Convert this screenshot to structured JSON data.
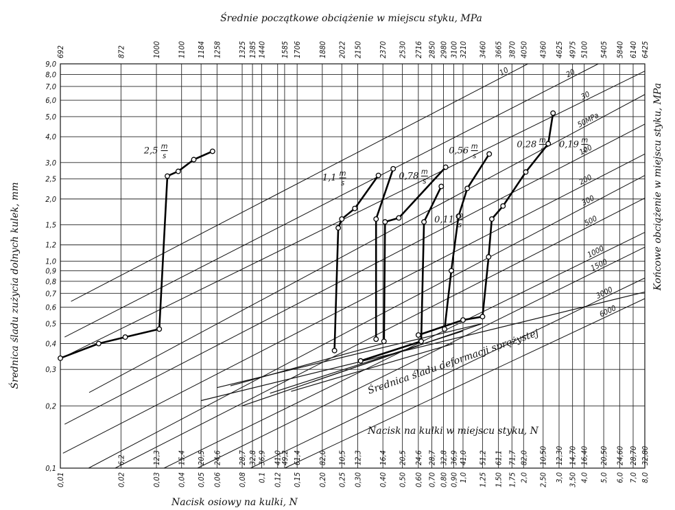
{
  "chart_data": {
    "type": "line",
    "title_top": "Średnie początkowe obciążenie w miejscu styku, MPa",
    "xlabel": "Nacisk osiowy na kulki, N",
    "xlabel_contact": "Nacisk na kulki w miejscu styku, N",
    "ylabel_left": "Średnica śladu zużycia dolnych kulek, mm",
    "ylabel_right": "Końcowe obciążenie w miejscu styku, MPa",
    "elastic_label": "Średnica śladu deformacji sprężystej",
    "x_scale": "log",
    "y_scale": "log",
    "xlim": [
      0.01,
      8.0
    ],
    "ylim": [
      0.1,
      9.0
    ],
    "x_ticks": [
      {
        "v": 0.01,
        "b": "0,01",
        "c": "",
        "t": "692"
      },
      {
        "v": 0.02,
        "b": "0,02",
        "c": "6,2",
        "t": "872"
      },
      {
        "v": 0.03,
        "b": "0,03",
        "c": "12,3",
        "t": "1000"
      },
      {
        "v": 0.04,
        "b": "0,04",
        "c": "15,4",
        "t": "1100"
      },
      {
        "v": 0.05,
        "b": "0,05",
        "c": "20,5",
        "t": "1184"
      },
      {
        "v": 0.06,
        "b": "0,06",
        "c": "24,6",
        "t": "1258"
      },
      {
        "v": 0.08,
        "b": "0,08",
        "c": "28,7",
        "t": "1325"
      },
      {
        "v": 0.09,
        "b": "",
        "c": "32,8",
        "t": "1385"
      },
      {
        "v": 0.1,
        "b": "0,1",
        "c": "36,9",
        "t": "1440"
      },
      {
        "v": 0.12,
        "b": "0,12",
        "c": "41,0",
        "t": ""
      },
      {
        "v": 0.13,
        "b": "",
        "c": "49,2",
        "t": "1585"
      },
      {
        "v": 0.15,
        "b": "0,15",
        "c": "61,4",
        "t": "1706"
      },
      {
        "v": 0.2,
        "b": "0,20",
        "c": "82,0",
        "t": "1880"
      },
      {
        "v": 0.25,
        "b": "0,25",
        "c": "10,5",
        "t": "2022"
      },
      {
        "v": 0.3,
        "b": "0,30",
        "c": "12,3",
        "t": "2150"
      },
      {
        "v": 0.4,
        "b": "0,40",
        "c": "16,4",
        "t": "2370"
      },
      {
        "v": 0.5,
        "b": "0,50",
        "c": "20,5",
        "t": "2530"
      },
      {
        "v": 0.6,
        "b": "0,60",
        "c": "24,6",
        "t": "2716"
      },
      {
        "v": 0.7,
        "b": "0,70",
        "c": "28,7",
        "t": "2850"
      },
      {
        "v": 0.8,
        "b": "0,80",
        "c": "32,8",
        "t": "2980"
      },
      {
        "v": 0.9,
        "b": "0,90",
        "c": "36,9",
        "t": "3100"
      },
      {
        "v": 1.0,
        "b": "1,0",
        "c": "41,0",
        "t": "3210"
      },
      {
        "v": 1.25,
        "b": "1,25",
        "c": "51,2",
        "t": "3460"
      },
      {
        "v": 1.5,
        "b": "1,50",
        "c": "61,1",
        "t": "3665"
      },
      {
        "v": 1.75,
        "b": "1,75",
        "c": "71,7",
        "t": "3870"
      },
      {
        "v": 2.0,
        "b": "2,0",
        "c": "82,0",
        "t": "4050"
      },
      {
        "v": 2.5,
        "b": "2,50",
        "c": "10,50",
        "t": "4360"
      },
      {
        "v": 3.0,
        "b": "3,0",
        "c": "12,30",
        "t": "4625"
      },
      {
        "v": 3.5,
        "b": "3,50",
        "c": "14,70",
        "t": "4975"
      },
      {
        "v": 4.0,
        "b": "4,0",
        "c": "16,40",
        "t": "5100"
      },
      {
        "v": 5.0,
        "b": "5,0",
        "c": "20,50",
        "t": "5405"
      },
      {
        "v": 6.0,
        "b": "6,0",
        "c": "24,60",
        "t": "5840"
      },
      {
        "v": 7.0,
        "b": "7,0",
        "c": "28,70",
        "t": "6140"
      },
      {
        "v": 8.0,
        "b": "8,0",
        "c": "32,80",
        "t": "6425"
      }
    ],
    "y_ticks": [
      {
        "v": 0.1,
        "l": "0,1"
      },
      {
        "v": 0.2,
        "l": "0,2"
      },
      {
        "v": 0.3,
        "l": "0,3"
      },
      {
        "v": 0.4,
        "l": "0,4"
      },
      {
        "v": 0.5,
        "l": "0,5"
      },
      {
        "v": 0.6,
        "l": "0,6"
      },
      {
        "v": 0.7,
        "l": "0,7"
      },
      {
        "v": 0.8,
        "l": "0,8"
      },
      {
        "v": 0.9,
        "l": "0,9"
      },
      {
        "v": 1.0,
        "l": "1,0"
      },
      {
        "v": 1.2,
        "l": "1,2"
      },
      {
        "v": 1.5,
        "l": "1,5"
      },
      {
        "v": 2.0,
        "l": "2,0"
      },
      {
        "v": 2.5,
        "l": "2,5"
      },
      {
        "v": 3.0,
        "l": "3,0"
      },
      {
        "v": 4.0,
        "l": "4,0"
      },
      {
        "v": 5.0,
        "l": "5,0"
      },
      {
        "v": 6.0,
        "l": "6,0"
      },
      {
        "v": 7.0,
        "l": "7,0"
      },
      {
        "v": 8.0,
        "l": "8,0"
      },
      {
        "v": 9.0,
        "l": "9,0"
      }
    ],
    "pressure_lines": [
      {
        "label": "10",
        "x1": 0.0113,
        "y1": 0.64,
        "x2": 2.1,
        "y2": 9.0
      },
      {
        "label": "20",
        "x1": 0.0105,
        "y1": 0.43,
        "x2": 4.7,
        "y2": 9.0
      },
      {
        "label": "30",
        "x1": 0.0101,
        "y1": 0.34,
        "x2": 8.0,
        "y2": 8.3
      },
      {
        "label": "50MPa",
        "x1": 0.0139,
        "y1": 0.232,
        "x2": 8.0,
        "y2": 6.4
      },
      {
        "label": "100",
        "x1": 0.0105,
        "y1": 0.163,
        "x2": 8.0,
        "y2": 4.6
      },
      {
        "label": "200",
        "x1": 0.0103,
        "y1": 0.118,
        "x2": 8.0,
        "y2": 3.3
      },
      {
        "label": "300",
        "x1": 0.0138,
        "y1": 0.1,
        "x2": 8.0,
        "y2": 2.6
      },
      {
        "label": "500",
        "x1": 0.0187,
        "y1": 0.1,
        "x2": 8.0,
        "y2": 2.02
      },
      {
        "label": "1000",
        "x1": 0.0327,
        "y1": 0.1,
        "x2": 8.0,
        "y2": 1.38
      },
      {
        "label": "1500",
        "x1": 0.048,
        "y1": 0.1,
        "x2": 8.0,
        "y2": 1.17
      },
      {
        "label": "3000",
        "x1": 0.088,
        "y1": 0.1,
        "x2": 8.0,
        "y2": 0.83
      },
      {
        "label": "6000",
        "x1": 0.13,
        "y1": 0.1,
        "x2": 8.0,
        "y2": 0.66
      }
    ],
    "elastic_lines": [
      {
        "x1": 0.05,
        "y1": 0.212,
        "x2": 8.0,
        "y2": 0.71
      },
      {
        "x1": 0.08,
        "y1": 0.2,
        "x2": 1.25,
        "y2": 0.5
      },
      {
        "x1": 0.06,
        "y1": 0.245,
        "x2": 1.25,
        "y2": 0.5
      },
      {
        "x1": 0.11,
        "y1": 0.23,
        "x2": 1.0,
        "y2": 0.46
      },
      {
        "x1": 0.14,
        "y1": 0.235,
        "x2": 0.9,
        "y2": 0.4
      },
      {
        "x1": 0.07,
        "y1": 0.25,
        "x2": 0.4,
        "y2": 0.4
      },
      {
        "x1": 0.18,
        "y1": 0.262,
        "x2": 0.6,
        "y2": 0.39
      }
    ],
    "series": [
      {
        "name": "2,5 m/s",
        "points": [
          [
            0.01,
            0.34
          ],
          [
            0.0155,
            0.4
          ],
          [
            0.021,
            0.43
          ],
          [
            0.031,
            0.47
          ],
          [
            0.034,
            2.58
          ],
          [
            0.0385,
            2.72
          ],
          [
            0.046,
            3.1
          ],
          [
            0.057,
            3.4
          ]
        ]
      },
      {
        "name": "1,1 m/s",
        "points": [
          [
            0.23,
            0.37
          ],
          [
            0.24,
            1.45
          ],
          [
            0.25,
            1.6
          ],
          [
            0.29,
            1.8
          ],
          [
            0.38,
            2.6
          ]
        ]
      },
      {
        "name": "0,78 m/s",
        "points": [
          [
            0.37,
            0.42
          ],
          [
            0.37,
            1.6
          ],
          [
            0.45,
            2.8
          ]
        ]
      },
      {
        "name": "0,56 m/s",
        "points": [
          [
            0.405,
            0.41
          ],
          [
            0.41,
            1.55
          ],
          [
            0.48,
            1.62
          ],
          [
            0.82,
            2.85
          ]
        ]
      },
      {
        "name": "0,11 m/s",
        "points": [
          [
            0.31,
            0.33
          ],
          [
            0.62,
            0.41
          ],
          [
            0.64,
            1.55
          ],
          [
            0.78,
            2.3
          ]
        ]
      },
      {
        "name": "0,28 m/s",
        "points": [
          [
            0.81,
            0.47
          ],
          [
            0.875,
            0.9
          ],
          [
            0.95,
            1.65
          ],
          [
            1.05,
            2.25
          ],
          [
            1.35,
            3.3
          ]
        ]
      },
      {
        "name": "0,19 m/s",
        "points": [
          [
            0.6,
            0.44
          ],
          [
            1.0,
            0.52
          ],
          [
            1.25,
            0.54
          ],
          [
            1.34,
            1.05
          ],
          [
            1.39,
            1.6
          ],
          [
            1.58,
            1.85
          ],
          [
            2.05,
            2.7
          ],
          [
            2.65,
            3.7
          ],
          [
            2.8,
            5.2
          ]
        ]
      }
    ],
    "curve_labels": [
      {
        "mag": "2,5",
        "x": 0.026,
        "y": 3.45
      },
      {
        "mag": "1,1",
        "x": 0.2,
        "y": 2.55
      },
      {
        "mag": "0,78",
        "x": 0.48,
        "y": 2.6
      },
      {
        "mag": "0,56",
        "x": 0.85,
        "y": 3.45
      },
      {
        "mag": "0,11",
        "x": 0.72,
        "y": 1.6
      },
      {
        "mag": "0,28",
        "x": 1.85,
        "y": 3.7
      },
      {
        "mag": "0,19",
        "x": 3.0,
        "y": 3.7
      }
    ],
    "unit_num": "m",
    "unit_den": "s"
  }
}
